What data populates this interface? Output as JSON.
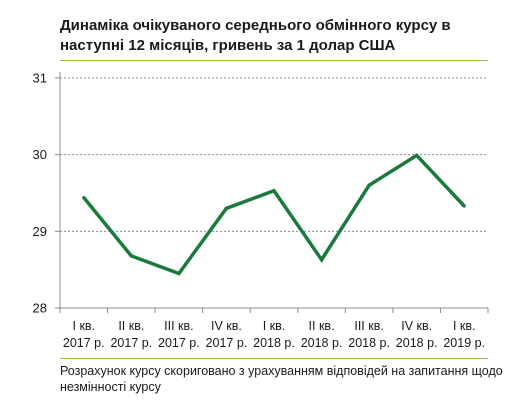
{
  "header": {
    "title": "Динаміка очікуваного середнього обмінного курсу в наступні 12 місяців, гривень за 1 долар США"
  },
  "footer": {
    "note": "Розрахунок курсу скориговано з урахуванням відповідей на запитання щодо незмінності курсу"
  },
  "colors": {
    "line": "#1a7a3d",
    "rule": "#8cc63f",
    "grid": "#8c8c8c",
    "axis": "#8c8c8c",
    "text": "#1a1a1a"
  },
  "chart_data": {
    "type": "line",
    "title": "Динаміка очікуваного середнього обмінного курсу в наступні 12 місяців, гривень за 1 долар США",
    "xlabel": "",
    "ylabel": "",
    "categories": [
      [
        "I кв.",
        "2017 р."
      ],
      [
        "II кв.",
        "2017 р."
      ],
      [
        "III кв.",
        "2017 р."
      ],
      [
        "IV кв.",
        "2017 р."
      ],
      [
        "I кв.",
        "2018 р."
      ],
      [
        "II кв.",
        "2018 р."
      ],
      [
        "III кв.",
        "2018 р."
      ],
      [
        "IV кв.",
        "2018 р."
      ],
      [
        "I кв.",
        "2019 р."
      ]
    ],
    "series": [
      {
        "values": [
          29.44,
          28.68,
          28.45,
          29.3,
          29.53,
          28.63,
          29.6,
          29.99,
          29.33
        ]
      }
    ],
    "ylim": [
      28,
      31
    ],
    "yticks": [
      28,
      29,
      30,
      31
    ],
    "grid": true,
    "legend": "none"
  }
}
